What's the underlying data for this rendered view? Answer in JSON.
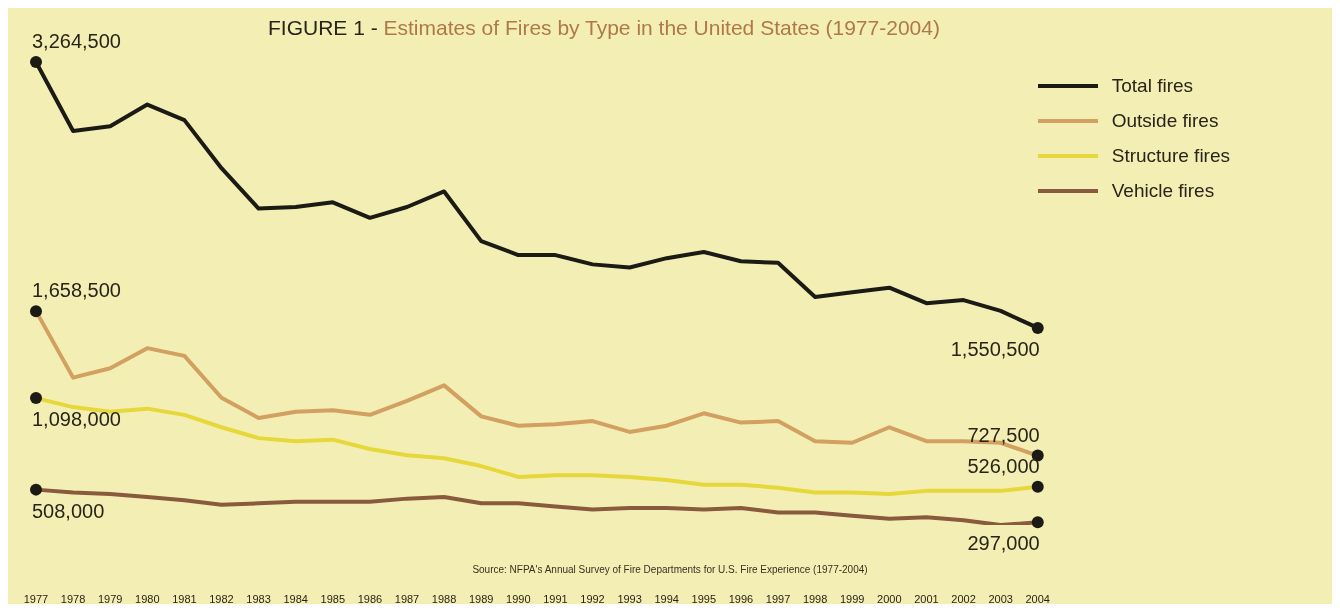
{
  "chart_data": {
    "type": "line",
    "title": "FIGURE 1 - Estimates of Fires by Type in the United States (1977-2004)",
    "annotations": [
      "Source: NFPA's Annual Survey of Fire Departments for U.S. Fire Experience (1977-2004)"
    ],
    "categories": [
      "1977",
      "1978",
      "1979",
      "1980",
      "1981",
      "1982",
      "1983",
      "1984",
      "1985",
      "1986",
      "1987",
      "1988",
      "1989",
      "1990",
      "1991",
      "1992",
      "1993",
      "1994",
      "1995",
      "1996",
      "1997",
      "1998",
      "1999",
      "2000",
      "2001",
      "2002",
      "2003",
      "2004"
    ],
    "tick_labels": "x",
    "grid": false,
    "legend": "top right",
    "marker": "none",
    "line_style": "solid",
    "series": [
      {
        "name": "Total fires",
        "color": "#1c1a14",
        "values": [
          3264500,
          2820000,
          2850000,
          2990000,
          2890000,
          2580000,
          2320000,
          2330000,
          2360000,
          2260000,
          2330000,
          2430000,
          2110000,
          2020000,
          2020000,
          1960000,
          1940000,
          2000000,
          2040000,
          1980000,
          1970000,
          1750000,
          1780000,
          1810000,
          1710000,
          1730000,
          1660000,
          1550500
        ],
        "value_labels": [
          "3,264,500",
          null,
          null,
          null,
          null,
          null,
          null,
          null,
          null,
          null,
          null,
          null,
          null,
          null,
          null,
          null,
          null,
          null,
          null,
          null,
          null,
          null,
          null,
          null,
          null,
          null,
          null,
          "1,550,500"
        ]
      },
      {
        "name": "Outside fires",
        "color": "#d2a060",
        "values": [
          1658500,
          1230000,
          1290000,
          1420000,
          1370000,
          1100000,
          970000,
          1010000,
          1020000,
          990000,
          1080000,
          1180000,
          980000,
          920000,
          930000,
          950000,
          880000,
          920000,
          1000000,
          940000,
          950000,
          820000,
          810000,
          910000,
          820000,
          820000,
          810000,
          727500
        ],
        "value_labels": [
          "1,658,500",
          null,
          null,
          null,
          null,
          null,
          null,
          null,
          null,
          null,
          null,
          null,
          null,
          null,
          null,
          null,
          null,
          null,
          null,
          null,
          null,
          null,
          null,
          null,
          null,
          null,
          null,
          "727,500"
        ]
      },
      {
        "name": "Structure fires",
        "color": "#e6d83a",
        "values": [
          1098000,
          1040000,
          1010000,
          1030000,
          990000,
          910000,
          840000,
          820000,
          830000,
          770000,
          730000,
          710000,
          660000,
          590000,
          600000,
          600000,
          590000,
          570000,
          540000,
          540000,
          520000,
          490000,
          490000,
          480000,
          500000,
          500000,
          500000,
          526000
        ],
        "value_labels": [
          "1,098,000",
          null,
          null,
          null,
          null,
          null,
          null,
          null,
          null,
          null,
          null,
          null,
          null,
          null,
          null,
          null,
          null,
          null,
          null,
          null,
          null,
          null,
          null,
          null,
          null,
          null,
          null,
          "526,000"
        ]
      },
      {
        "name": "Vehicle fires",
        "color": "#8a5a3e",
        "values": [
          508000,
          490000,
          480000,
          460000,
          440000,
          410000,
          420000,
          430000,
          430000,
          430000,
          450000,
          460000,
          420000,
          420000,
          400000,
          380000,
          390000,
          390000,
          380000,
          390000,
          360000,
          360000,
          340000,
          320000,
          330000,
          310000,
          280000,
          297000
        ],
        "value_labels": [
          "508,000",
          null,
          null,
          null,
          null,
          null,
          null,
          null,
          null,
          null,
          null,
          null,
          null,
          null,
          null,
          null,
          null,
          null,
          null,
          null,
          null,
          null,
          null,
          null,
          null,
          null,
          null,
          "297,000"
        ]
      }
    ]
  }
}
